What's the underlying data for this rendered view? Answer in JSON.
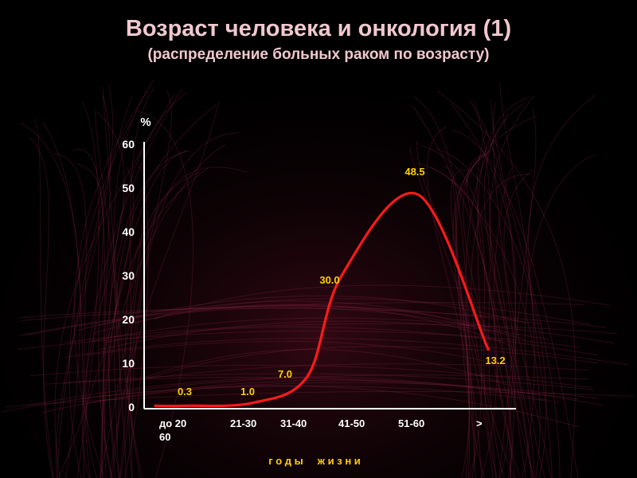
{
  "title": "Возраст человека и онкология (1)",
  "subtitle": "(распределение больных раком по возрасту)",
  "colors": {
    "curve": "#ff1a1a",
    "label": "#ffd000",
    "text": "#ffffff",
    "title": "#f0c8cf",
    "background": "#000000"
  },
  "chart_data": {
    "type": "line",
    "ylabel": "%",
    "xlabel": "г о д ы     ж и з н и",
    "ylim": [
      0,
      60
    ],
    "y_ticks": [
      0,
      10,
      20,
      30,
      40,
      50,
      60
    ],
    "categories": [
      "до 20",
      "21-30",
      "31-40",
      "41-50",
      "51-60",
      "> 60"
    ],
    "x_tick_labels": [
      "до 20",
      "21-30",
      "31-40",
      "41-50",
      "51-60",
      ">"
    ],
    "x_tick_overflow": "60",
    "data_labels": [
      "0.3",
      "1.0",
      "7.0",
      "30.0",
      "48.5",
      "13.2"
    ],
    "values": [
      0.3,
      1.0,
      7.0,
      30.0,
      48.5,
      13.2
    ],
    "grid": false,
    "legend": "none"
  }
}
